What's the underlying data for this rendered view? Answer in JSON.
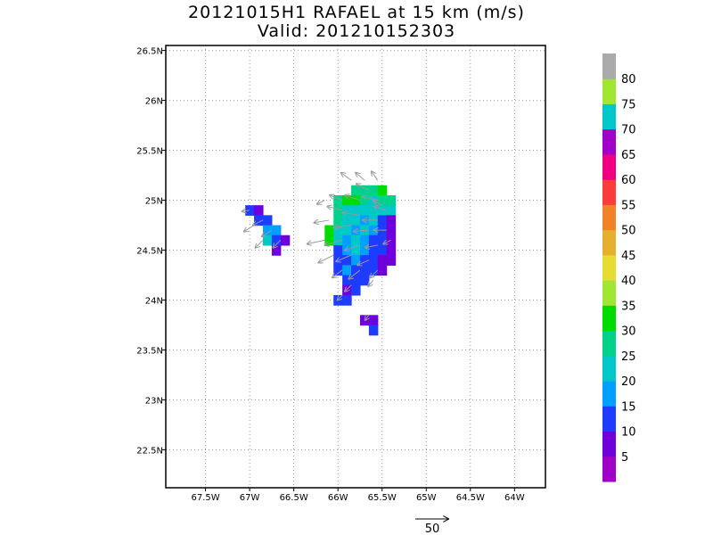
{
  "chart_data": {
    "type": "heatmap",
    "title": "20121015H1 RAFAEL at 15 km (m/s)",
    "subtitle": "Valid: 201210152303",
    "xlim": [
      -67.95,
      -63.65
    ],
    "ylim": [
      22.12,
      26.55
    ],
    "x_ticks": [
      -67.5,
      -67.0,
      -66.5,
      -66.0,
      -65.5,
      -65.0,
      -64.5,
      -64.0
    ],
    "x_tick_labels": [
      "67.5W",
      "67W",
      "66.5W",
      "66W",
      "65.5W",
      "65W",
      "64.5W",
      "64W"
    ],
    "y_ticks": [
      22.5,
      23.0,
      23.5,
      24.0,
      24.5,
      25.0,
      25.5,
      26.0,
      26.5
    ],
    "y_tick_labels": [
      "22.5N",
      "23N",
      "23.5N",
      "24N",
      "24.5N",
      "25N",
      "25.5N",
      "26N",
      "26.5N"
    ],
    "grid": true,
    "cell_deg": [
      0.1,
      0.1
    ],
    "cells": [
      [
        -65.8,
        25.1,
        27
      ],
      [
        -65.7,
        25.1,
        27
      ],
      [
        -65.6,
        25.1,
        26
      ],
      [
        -65.5,
        25.1,
        33
      ],
      [
        -66.0,
        25.0,
        27
      ],
      [
        -65.9,
        25.0,
        30
      ],
      [
        -65.8,
        25.0,
        33
      ],
      [
        -65.7,
        25.0,
        27
      ],
      [
        -65.6,
        25.0,
        24
      ],
      [
        -65.5,
        25.0,
        27
      ],
      [
        -65.4,
        25.0,
        28
      ],
      [
        -66.0,
        24.9,
        25
      ],
      [
        -65.9,
        24.9,
        24
      ],
      [
        -65.8,
        24.9,
        22
      ],
      [
        -65.7,
        24.9,
        22
      ],
      [
        -65.6,
        24.9,
        20
      ],
      [
        -65.5,
        24.9,
        22
      ],
      [
        -65.4,
        24.9,
        21
      ],
      [
        -66.0,
        24.8,
        25
      ],
      [
        -65.9,
        24.8,
        24
      ],
      [
        -65.8,
        24.8,
        22
      ],
      [
        -65.7,
        24.8,
        18
      ],
      [
        -65.6,
        24.8,
        20
      ],
      [
        -65.5,
        24.8,
        14
      ],
      [
        -65.4,
        24.8,
        7
      ],
      [
        -66.1,
        24.7,
        33
      ],
      [
        -66.0,
        24.7,
        22
      ],
      [
        -65.9,
        24.7,
        20
      ],
      [
        -65.8,
        24.7,
        18
      ],
      [
        -65.7,
        24.7,
        22
      ],
      [
        -65.6,
        24.7,
        18
      ],
      [
        -65.5,
        24.7,
        14
      ],
      [
        -65.4,
        24.7,
        7
      ],
      [
        -66.1,
        24.6,
        33
      ],
      [
        -66.0,
        24.6,
        22
      ],
      [
        -65.9,
        24.6,
        18
      ],
      [
        -65.8,
        24.6,
        22
      ],
      [
        -65.7,
        24.6,
        18
      ],
      [
        -65.6,
        24.6,
        14
      ],
      [
        -65.5,
        24.6,
        14
      ],
      [
        -65.4,
        24.6,
        7
      ],
      [
        -66.0,
        24.5,
        14
      ],
      [
        -65.9,
        24.5,
        18
      ],
      [
        -65.8,
        24.5,
        22
      ],
      [
        -65.7,
        24.5,
        18
      ],
      [
        -65.6,
        24.5,
        14
      ],
      [
        -65.5,
        24.5,
        12
      ],
      [
        -65.4,
        24.5,
        7
      ],
      [
        -66.0,
        24.4,
        14
      ],
      [
        -65.9,
        24.4,
        13
      ],
      [
        -65.8,
        24.4,
        18
      ],
      [
        -65.7,
        24.4,
        14
      ],
      [
        -65.6,
        24.4,
        14
      ],
      [
        -65.5,
        24.4,
        7
      ],
      [
        -65.4,
        24.4,
        7
      ],
      [
        -66.0,
        24.3,
        13
      ],
      [
        -65.9,
        24.3,
        18
      ],
      [
        -65.8,
        24.3,
        14
      ],
      [
        -65.7,
        24.3,
        14
      ],
      [
        -65.6,
        24.3,
        13
      ],
      [
        -65.5,
        24.3,
        7
      ],
      [
        -65.9,
        24.2,
        14
      ],
      [
        -65.8,
        24.2,
        13
      ],
      [
        -65.7,
        24.2,
        12
      ],
      [
        -65.9,
        24.1,
        7
      ],
      [
        -65.8,
        24.1,
        12
      ],
      [
        -66.0,
        24.0,
        13
      ],
      [
        -65.9,
        24.0,
        13
      ],
      [
        -65.7,
        23.8,
        7
      ],
      [
        -65.6,
        23.8,
        7
      ],
      [
        -65.6,
        23.7,
        12
      ],
      [
        -67.0,
        24.9,
        13
      ],
      [
        -66.9,
        24.9,
        7
      ],
      [
        -66.9,
        24.8,
        14
      ],
      [
        -66.8,
        24.8,
        13
      ],
      [
        -66.8,
        24.7,
        18
      ],
      [
        -66.7,
        24.7,
        18
      ],
      [
        -66.8,
        24.6,
        20
      ],
      [
        -66.7,
        24.6,
        12
      ],
      [
        -66.6,
        24.6,
        7
      ],
      [
        -66.7,
        24.5,
        7
      ]
    ],
    "colorbar": {
      "labels": [
        "5",
        "10",
        "15",
        "20",
        "25",
        "30",
        "35",
        "40",
        "45",
        "50",
        "55",
        "60",
        "65",
        "70",
        "75",
        "80"
      ],
      "colors": [
        "#a000c8",
        "#6e00dc",
        "#1e3cff",
        "#00a0ff",
        "#00c8c8",
        "#00d28c",
        "#00dc00",
        "#a0e632",
        "#e6dc32",
        "#e6af2d",
        "#f08228",
        "#fa3c3c",
        "#f00082",
        "#a000c8",
        "#00c8c8",
        "#a0e632",
        "#aaaaaa"
      ]
    },
    "vector_reference": {
      "label": "50",
      "magnitude": 50
    },
    "vectors": [
      [
        -65.85,
        25.2,
        -8,
        6
      ],
      [
        -65.55,
        25.2,
        -5,
        7
      ],
      [
        -65.65,
        25.1,
        -10,
        5
      ],
      [
        -65.95,
        25.0,
        -10,
        4
      ],
      [
        -65.75,
        25.0,
        -12,
        4
      ],
      [
        -65.55,
        25.0,
        -12,
        3
      ],
      [
        -65.45,
        24.9,
        -10,
        3
      ],
      [
        -65.95,
        24.9,
        -12,
        3
      ],
      [
        -65.75,
        24.85,
        -14,
        2
      ],
      [
        -65.55,
        24.8,
        -12,
        0
      ],
      [
        -66.1,
        24.8,
        -12,
        -2
      ],
      [
        -65.85,
        24.75,
        -14,
        -2
      ],
      [
        -65.65,
        24.7,
        -12,
        -1
      ],
      [
        -65.45,
        24.7,
        -10,
        0
      ],
      [
        -66.15,
        24.6,
        -14,
        -3
      ],
      [
        -65.95,
        24.6,
        -14,
        -4
      ],
      [
        -65.75,
        24.55,
        -12,
        -4
      ],
      [
        -65.55,
        24.55,
        -10,
        -2
      ],
      [
        -66.05,
        24.45,
        -12,
        -6
      ],
      [
        -65.85,
        24.45,
        -12,
        -5
      ],
      [
        -65.65,
        24.4,
        -9,
        -4
      ],
      [
        -65.95,
        24.3,
        -8,
        -6
      ],
      [
        -65.75,
        24.3,
        -9,
        -7
      ],
      [
        -65.55,
        24.3,
        -6,
        -6
      ],
      [
        -65.85,
        24.15,
        -5,
        -5
      ],
      [
        -65.95,
        24.05,
        -4,
        -4
      ],
      [
        -65.65,
        23.85,
        -3,
        -4
      ],
      [
        -67.0,
        24.9,
        -6,
        -1
      ],
      [
        -66.85,
        24.8,
        -8,
        -4
      ],
      [
        -66.75,
        24.7,
        -8,
        -5
      ],
      [
        -66.95,
        24.75,
        -8,
        -5
      ],
      [
        -66.65,
        24.6,
        -6,
        -6
      ],
      [
        -66.85,
        24.6,
        -6,
        -6
      ],
      [
        -66.15,
        25.0,
        -6,
        -3
      ],
      [
        -65.5,
        24.95,
        -7,
        4
      ],
      [
        -65.7,
        25.2,
        -7,
        6
      ],
      [
        -65.4,
        24.6,
        -6,
        -3
      ],
      [
        -65.6,
        24.2,
        -4,
        -5
      ]
    ]
  }
}
